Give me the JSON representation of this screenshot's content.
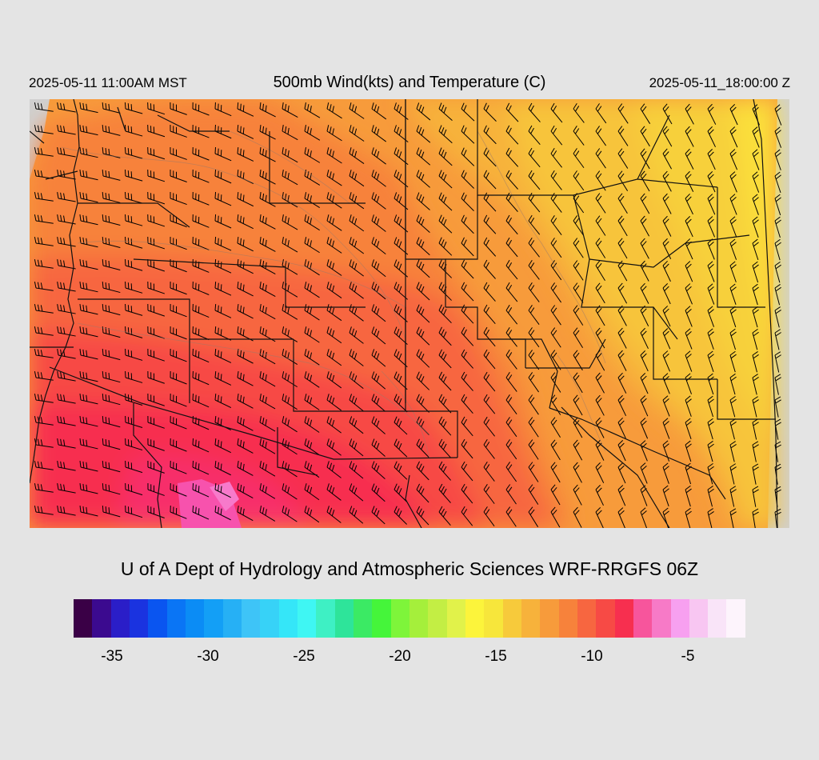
{
  "header": {
    "valid_local": "2025-05-11 11:00AM MST",
    "title": "500mb Wind(kts) and Temperature (C)",
    "valid_utc": "2025-05-11_18:00:00 Z"
  },
  "credit": "U of A Dept of Hydrology and Atmospheric Sciences WRF-RRGFS 06Z",
  "colorbar": {
    "colors": [
      "#3a0046",
      "#3b0a8f",
      "#2a1ec8",
      "#1a33e0",
      "#0a55f0",
      "#0a75f5",
      "#0b8cf5",
      "#139ff6",
      "#26b0f5",
      "#3ec4f7",
      "#37d2f7",
      "#35e6f8",
      "#3ff6f3",
      "#3ef0c4",
      "#2ee49a",
      "#3bea64",
      "#45f53a",
      "#7ef53a",
      "#a5ef3b",
      "#c3ee44",
      "#e1f24a",
      "#fcf43b",
      "#f7e63b",
      "#f7ca3b",
      "#f7b23b",
      "#f79b3b",
      "#f7823b",
      "#f76640",
      "#f74a45",
      "#f72f4f",
      "#f7559c",
      "#f77ac7",
      "#f7a0f0",
      "#f8c6f2",
      "#f9e4f8",
      "#fdf4fc"
    ],
    "ticks": [
      "-35",
      "-30",
      "-25",
      "-20",
      "-15",
      "-10",
      "-5"
    ],
    "tick_values": [
      -35,
      -30,
      -25,
      -20,
      -15,
      -10,
      -5
    ],
    "range": [
      -37,
      -2
    ]
  }
}
